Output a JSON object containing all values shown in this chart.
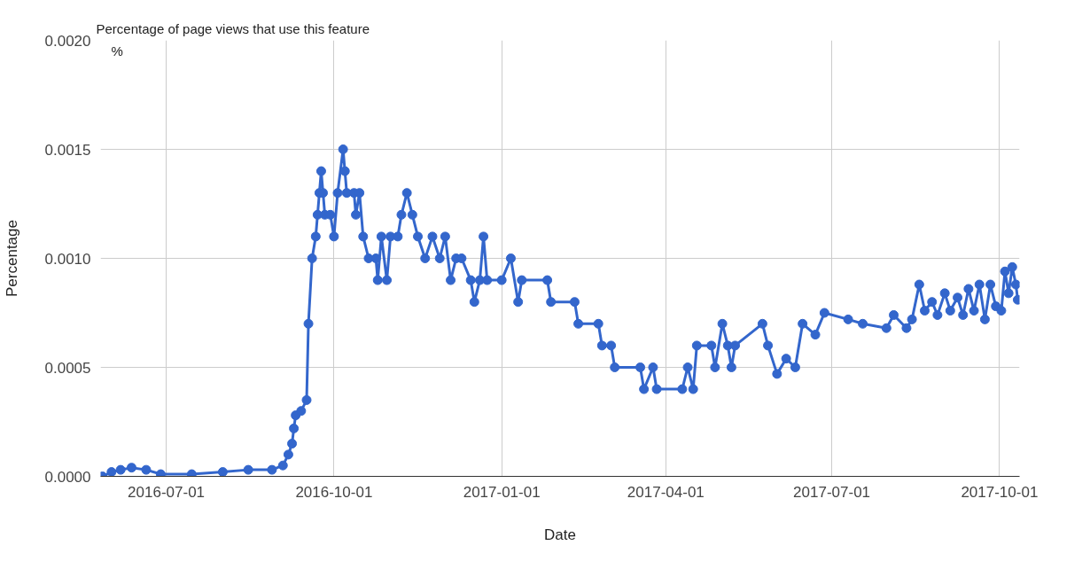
{
  "chart_data": {
    "type": "line",
    "title": "Percentage of page views that use this feature",
    "xlabel": "Date",
    "ylabel": "Percentage",
    "annotations": [
      "%"
    ],
    "x": [
      "2016-05-27",
      "2016-06-01",
      "2016-06-06",
      "2016-06-12",
      "2016-06-20",
      "2016-06-28",
      "2016-07-15",
      "2016-08-01",
      "2016-08-15",
      "2016-08-28",
      "2016-09-03",
      "2016-09-06",
      "2016-09-08",
      "2016-09-09",
      "2016-09-10",
      "2016-09-13",
      "2016-09-16",
      "2016-09-17",
      "2016-09-19",
      "2016-09-21",
      "2016-09-22",
      "2016-09-23",
      "2016-09-24",
      "2016-09-25",
      "2016-09-26",
      "2016-09-29",
      "2016-10-01",
      "2016-10-03",
      "2016-10-06",
      "2016-10-07",
      "2016-10-08",
      "2016-10-12",
      "2016-10-13",
      "2016-10-15",
      "2016-10-17",
      "2016-10-20",
      "2016-10-24",
      "2016-10-25",
      "2016-10-27",
      "2016-10-30",
      "2016-11-01",
      "2016-11-05",
      "2016-11-07",
      "2016-11-10",
      "2016-11-13",
      "2016-11-16",
      "2016-11-20",
      "2016-11-24",
      "2016-11-28",
      "2016-12-01",
      "2016-12-04",
      "2016-12-07",
      "2016-12-10",
      "2016-12-15",
      "2016-12-17",
      "2016-12-20",
      "2016-12-22",
      "2016-12-24",
      "2017-01-01",
      "2017-01-06",
      "2017-01-10",
      "2017-01-12",
      "2017-01-26",
      "2017-01-28",
      "2017-02-10",
      "2017-02-12",
      "2017-02-23",
      "2017-02-25",
      "2017-03-02",
      "2017-03-04",
      "2017-03-18",
      "2017-03-20",
      "2017-03-25",
      "2017-03-27",
      "2017-04-10",
      "2017-04-13",
      "2017-04-16",
      "2017-04-18",
      "2017-04-26",
      "2017-04-28",
      "2017-05-02",
      "2017-05-05",
      "2017-05-07",
      "2017-05-09",
      "2017-05-24",
      "2017-05-27",
      "2017-06-01",
      "2017-06-06",
      "2017-06-11",
      "2017-06-15",
      "2017-06-22",
      "2017-06-27",
      "2017-07-10",
      "2017-07-18",
      "2017-07-31",
      "2017-08-04",
      "2017-08-11",
      "2017-08-14",
      "2017-08-18",
      "2017-08-21",
      "2017-08-25",
      "2017-08-28",
      "2017-09-01",
      "2017-09-04",
      "2017-09-08",
      "2017-09-11",
      "2017-09-14",
      "2017-09-17",
      "2017-09-20",
      "2017-09-23",
      "2017-09-26",
      "2017-09-29",
      "2017-10-02",
      "2017-10-04",
      "2017-10-06",
      "2017-10-08",
      "2017-10-10",
      "2017-10-11"
    ],
    "series": [
      {
        "color": "#3366cc",
        "values": [
          0.0,
          2e-05,
          3e-05,
          4e-05,
          3e-05,
          1e-05,
          1e-05,
          2e-05,
          3e-05,
          3e-05,
          5e-05,
          0.0001,
          0.00015,
          0.00022,
          0.00028,
          0.0003,
          0.00035,
          0.0007,
          0.001,
          0.0011,
          0.0012,
          0.0013,
          0.0014,
          0.0013,
          0.0012,
          0.0012,
          0.0011,
          0.0013,
          0.0015,
          0.0014,
          0.0013,
          0.0013,
          0.0012,
          0.0013,
          0.0011,
          0.001,
          0.001,
          0.0009,
          0.0011,
          0.0009,
          0.0011,
          0.0011,
          0.0012,
          0.0013,
          0.0012,
          0.0011,
          0.001,
          0.0011,
          0.001,
          0.0011,
          0.0009,
          0.001,
          0.001,
          0.0009,
          0.0008,
          0.0009,
          0.0011,
          0.0009,
          0.0009,
          0.001,
          0.0008,
          0.0009,
          0.0009,
          0.0008,
          0.0008,
          0.0007,
          0.0007,
          0.0006,
          0.0006,
          0.0005,
          0.0005,
          0.0004,
          0.0005,
          0.0004,
          0.0004,
          0.0005,
          0.0004,
          0.0006,
          0.0006,
          0.0005,
          0.0007,
          0.0006,
          0.0005,
          0.0006,
          0.0007,
          0.0006,
          0.00047,
          0.00054,
          0.0005,
          0.0007,
          0.00065,
          0.00075,
          0.00072,
          0.0007,
          0.00068,
          0.00074,
          0.00068,
          0.00072,
          0.00088,
          0.00076,
          0.0008,
          0.00074,
          0.00084,
          0.00076,
          0.00082,
          0.00074,
          0.00086,
          0.00076,
          0.00088,
          0.00072,
          0.00088,
          0.00078,
          0.00076,
          0.00094,
          0.00084,
          0.00096,
          0.00088,
          0.00081
        ]
      }
    ],
    "xlim": [
      "2016-05-26",
      "2017-10-12"
    ],
    "xticks": [
      "2016-07-01",
      "2016-10-01",
      "2017-01-01",
      "2017-04-01",
      "2017-07-01",
      "2017-10-01"
    ],
    "ylim": [
      0,
      0.002
    ],
    "yticks": [
      {
        "value": 0,
        "label": "0.0000"
      },
      {
        "value": 0.0005,
        "label": "0.0005"
      },
      {
        "value": 0.001,
        "label": "0.0010"
      },
      {
        "value": 0.0015,
        "label": "0.0015"
      },
      {
        "value": 0.002,
        "label": "0.0020"
      }
    ],
    "grid": true,
    "marker": "circle",
    "line_style": "solid"
  }
}
